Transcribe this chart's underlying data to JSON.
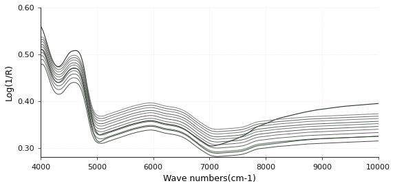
{
  "title": "",
  "xlabel": "Wave numbers(cm-1)",
  "ylabel": "Log(1/R)",
  "xlim": [
    10000,
    4000
  ],
  "ylim": [
    0.28,
    0.6
  ],
  "xticks": [
    10000,
    9000,
    8000,
    7000,
    6000,
    5000,
    4000
  ],
  "yticks": [
    0.3,
    0.4,
    0.5,
    0.6
  ],
  "background_color": "#ffffff",
  "line_colors": [
    "#2a2a2a",
    "#3d4d3d",
    "#4a4a4a",
    "#555555",
    "#404040",
    "#5a5a5a",
    "#3a4a3a",
    "#606060",
    "#484848",
    "#6a6a6a"
  ],
  "num_spectra": 10,
  "wavenumbers": [
    10000,
    9800,
    9600,
    9400,
    9200,
    9000,
    8800,
    8600,
    8400,
    8200,
    8000,
    7800,
    7700,
    7600,
    7400,
    7200,
    7100,
    7000,
    6900,
    6800,
    6600,
    6400,
    6200,
    6000,
    5800,
    5600,
    5400,
    5200,
    5100,
    5050,
    5000,
    4900,
    4800,
    4700,
    4600,
    4500,
    4400,
    4300,
    4200,
    4100,
    4000
  ],
  "spectra_offsets": [
    0.0,
    0.01,
    0.018,
    0.025,
    0.031,
    0.037,
    0.042,
    0.048,
    0.053,
    0.058
  ],
  "base_spectrum": [
    0.315,
    0.314,
    0.313,
    0.312,
    0.311,
    0.31,
    0.309,
    0.307,
    0.305,
    0.303,
    0.3,
    0.296,
    0.291,
    0.287,
    0.284,
    0.282,
    0.282,
    0.285,
    0.292,
    0.3,
    0.318,
    0.328,
    0.332,
    0.338,
    0.336,
    0.33,
    0.322,
    0.314,
    0.31,
    0.31,
    0.312,
    0.335,
    0.39,
    0.43,
    0.44,
    0.435,
    0.42,
    0.415,
    0.43,
    0.465,
    0.477
  ],
  "outlier_spectrum": [
    0.325,
    0.324,
    0.323,
    0.322,
    0.321,
    0.32,
    0.318,
    0.316,
    0.313,
    0.31,
    0.307,
    0.303,
    0.298,
    0.294,
    0.291,
    0.289,
    0.289,
    0.292,
    0.299,
    0.308,
    0.326,
    0.336,
    0.34,
    0.346,
    0.344,
    0.338,
    0.33,
    0.322,
    0.316,
    0.313,
    0.316,
    0.348,
    0.41,
    0.46,
    0.47,
    0.465,
    0.448,
    0.44,
    0.455,
    0.492,
    0.51
  ],
  "spike_spectrum": [
    0.395,
    0.393,
    0.391,
    0.389,
    0.386,
    0.383,
    0.379,
    0.374,
    0.368,
    0.362,
    0.352,
    0.342,
    0.333,
    0.326,
    0.316,
    0.308,
    0.305,
    0.305,
    0.312,
    0.32,
    0.337,
    0.348,
    0.352,
    0.358,
    0.356,
    0.35,
    0.342,
    0.334,
    0.33,
    0.328,
    0.332,
    0.37,
    0.45,
    0.5,
    0.508,
    0.502,
    0.483,
    0.474,
    0.49,
    0.528,
    0.56
  ]
}
